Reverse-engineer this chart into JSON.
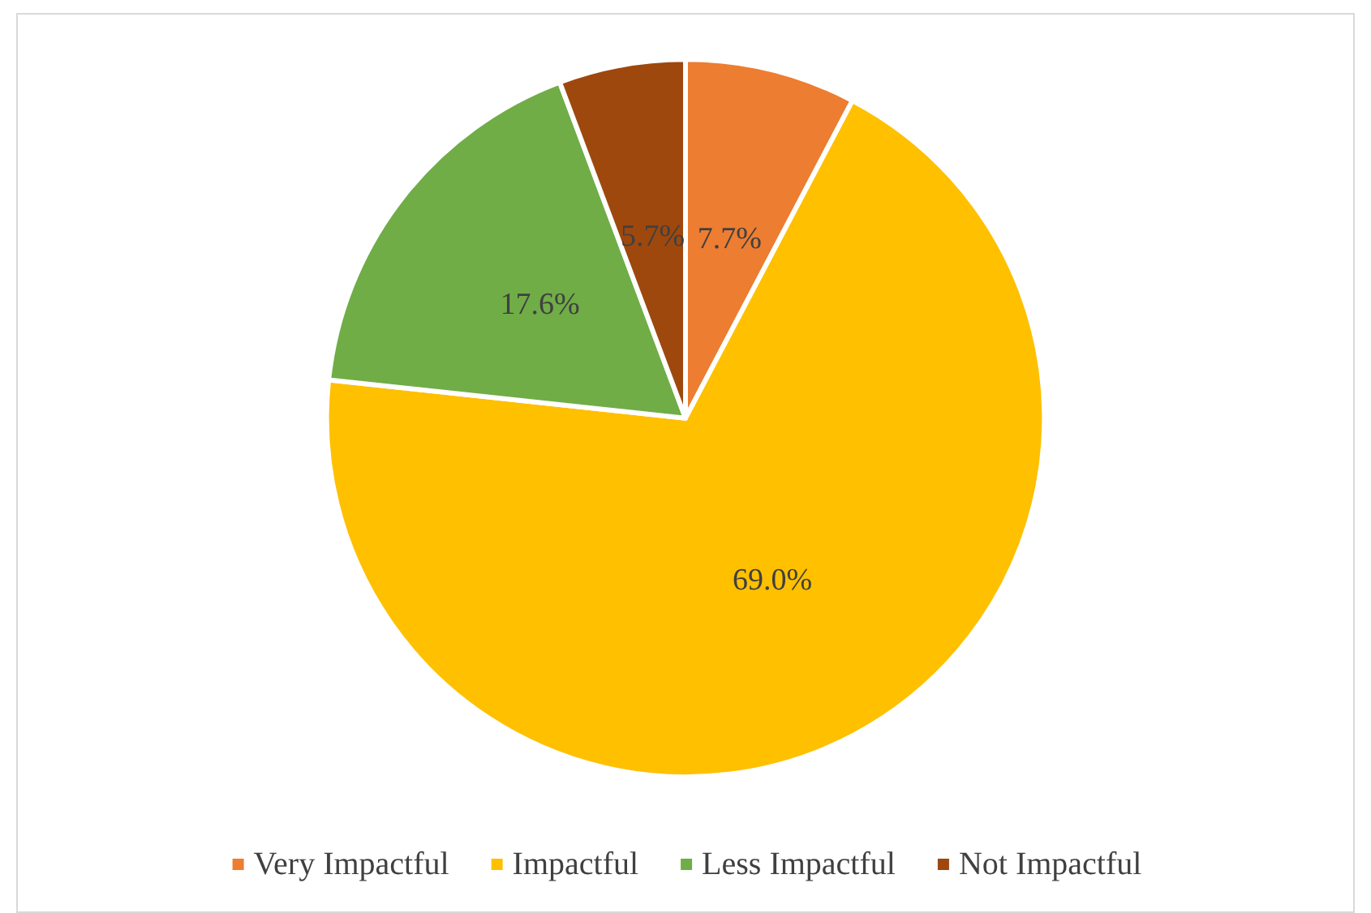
{
  "chart_data": {
    "type": "pie",
    "categories": [
      "Very Impactful",
      "Impactful",
      "Less Impactful",
      "Not Impactful"
    ],
    "values": [
      7.7,
      69.0,
      17.6,
      5.7
    ],
    "colors": [
      "#ed7d31",
      "#ffc000",
      "#70ad47",
      "#9e480e"
    ],
    "value_labels": [
      "7.7%",
      "69.0%",
      "17.6%",
      "5.7%"
    ],
    "legend": "bottom"
  }
}
